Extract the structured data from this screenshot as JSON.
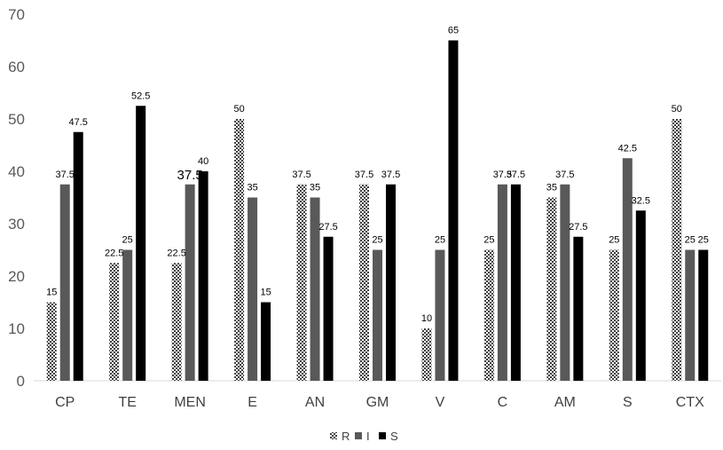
{
  "chart_data": {
    "type": "bar",
    "categories": [
      "CP",
      "TE",
      "MEN",
      "E",
      "AN",
      "GM",
      "V",
      "C",
      "AM",
      "S",
      "CTX"
    ],
    "series": [
      {
        "name": "R",
        "values": [
          15,
          22.5,
          22.5,
          50,
          37.5,
          37.5,
          10,
          25,
          35,
          25,
          50
        ],
        "pattern": "checker",
        "color": "#404040"
      },
      {
        "name": "I",
        "values": [
          37.5,
          25,
          37.5,
          35,
          35,
          25,
          25,
          37.5,
          37.5,
          42.5,
          25
        ],
        "pattern": "solid",
        "color": "#595959"
      },
      {
        "name": "S",
        "values": [
          47.5,
          52.5,
          40,
          15,
          27.5,
          37.5,
          65,
          37.5,
          27.5,
          32.5,
          25
        ],
        "pattern": "solid",
        "color": "#000000"
      }
    ],
    "data_labels": [
      [
        "15",
        "22.5",
        "22.5",
        "50",
        "37.5",
        "37.5",
        "10",
        "25",
        "35",
        "25",
        "50"
      ],
      [
        "37.5",
        "25",
        "37.5",
        "35",
        "35",
        "25",
        "25",
        "37.5",
        "37.5",
        "42.5",
        "25"
      ],
      [
        "47.5",
        "52.5",
        "40",
        "15",
        "27.5",
        "37.5",
        "65",
        "37.5",
        "27.5",
        "32.5",
        "25"
      ]
    ],
    "ylim": [
      0,
      70
    ],
    "yticks": [
      "0",
      "10",
      "20",
      "30",
      "40",
      "50",
      "60",
      "70"
    ],
    "title": "",
    "xlabel": "",
    "ylabel": "",
    "grid": false,
    "legend": "bottom"
  }
}
